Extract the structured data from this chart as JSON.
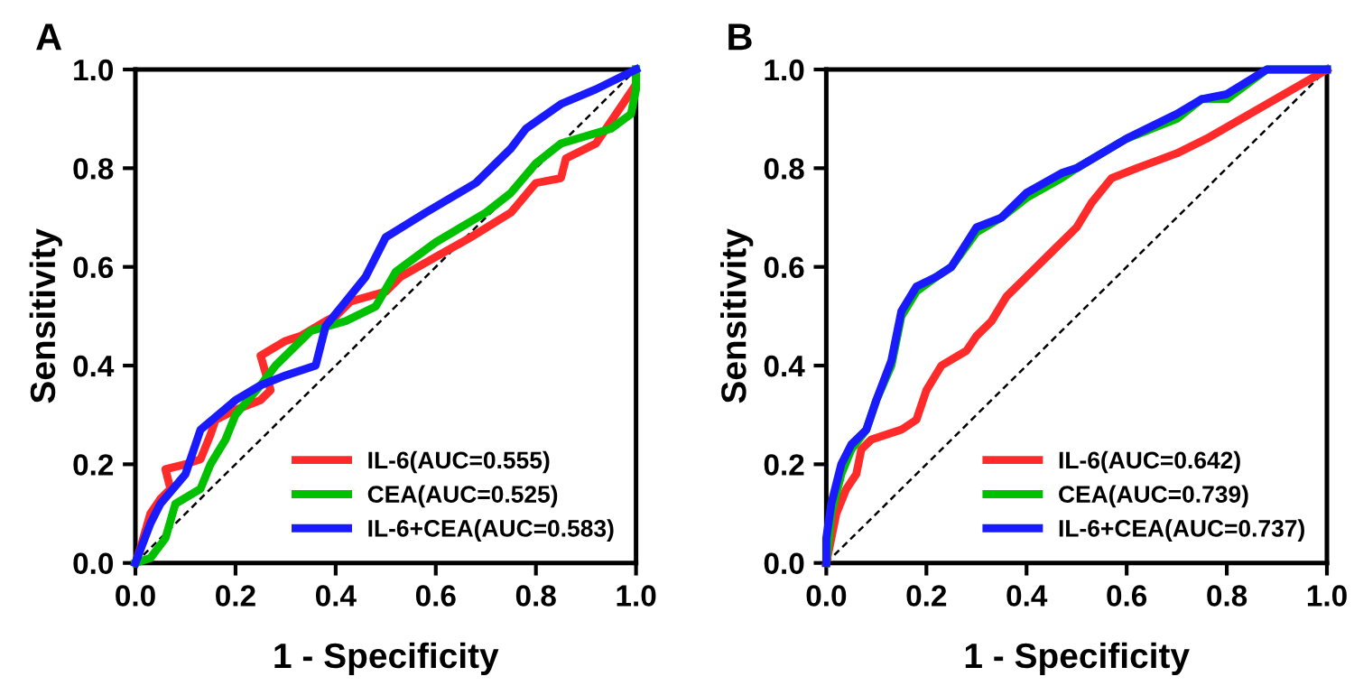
{
  "chart_data": [
    {
      "type": "line",
      "title": "A",
      "xlabel": "1 - Specificity",
      "ylabel": "Sensitivity",
      "xlim": [
        0,
        1
      ],
      "ylim": [
        0,
        1
      ],
      "xticks": [
        {
          "value": 0,
          "label": "0.0"
        },
        {
          "value": 0.2,
          "label": "0.2"
        },
        {
          "value": 0.4,
          "label": "0.4"
        },
        {
          "value": 0.6,
          "label": "0.6"
        },
        {
          "value": 0.8,
          "label": "0.8"
        },
        {
          "value": 1,
          "label": "1.0"
        }
      ],
      "yticks": [
        {
          "value": 0,
          "label": "0.0"
        },
        {
          "value": 0.2,
          "label": "0.2"
        },
        {
          "value": 0.4,
          "label": "0.4"
        },
        {
          "value": 0.6,
          "label": "0.6"
        },
        {
          "value": 0.8,
          "label": "0.8"
        },
        {
          "value": 1,
          "label": "1.0"
        }
      ],
      "grid": false,
      "legend": "bottom right",
      "marker": "none",
      "line_style": "solid",
      "series": [
        {
          "name": "IL-6(AUC=0.555)",
          "color": "#ff2a2a",
          "x": [
            0,
            0.01,
            0.03,
            0.05,
            0.07,
            0.06,
            0.1,
            0.13,
            0.15,
            0.16,
            0.2,
            0.25,
            0.27,
            0.25,
            0.3,
            0.33,
            0.38,
            0.4,
            0.43,
            0.5,
            0.53,
            0.6,
            0.67,
            0.75,
            0.8,
            0.85,
            0.86,
            0.92,
            1,
            1
          ],
          "values": [
            0,
            0.03,
            0.1,
            0.13,
            0.15,
            0.19,
            0.2,
            0.21,
            0.26,
            0.29,
            0.31,
            0.33,
            0.35,
            0.42,
            0.45,
            0.46,
            0.49,
            0.5,
            0.53,
            0.55,
            0.58,
            0.62,
            0.66,
            0.71,
            0.77,
            0.78,
            0.82,
            0.85,
            0.97,
            1
          ]
        },
        {
          "name": "CEA(AUC=0.525)",
          "color": "#00c000",
          "x": [
            0,
            0.03,
            0.06,
            0.08,
            0.13,
            0.15,
            0.18,
            0.2,
            0.25,
            0.28,
            0.35,
            0.42,
            0.48,
            0.52,
            0.6,
            0.7,
            0.75,
            0.8,
            0.85,
            0.95,
            0.99,
            1,
            1
          ],
          "values": [
            0,
            0.01,
            0.05,
            0.12,
            0.15,
            0.2,
            0.25,
            0.3,
            0.36,
            0.4,
            0.47,
            0.49,
            0.52,
            0.59,
            0.65,
            0.71,
            0.75,
            0.81,
            0.85,
            0.88,
            0.91,
            0.96,
            1
          ]
        },
        {
          "name": "IL-6+CEA(AUC=0.583)",
          "color": "#1a1aff",
          "x": [
            0,
            0.03,
            0.05,
            0.1,
            0.13,
            0.2,
            0.25,
            0.3,
            0.36,
            0.38,
            0.42,
            0.46,
            0.5,
            0.58,
            0.68,
            0.75,
            0.78,
            0.85,
            0.92,
            1
          ],
          "values": [
            0,
            0.08,
            0.12,
            0.18,
            0.27,
            0.33,
            0.36,
            0.38,
            0.4,
            0.48,
            0.53,
            0.58,
            0.66,
            0.71,
            0.77,
            0.84,
            0.88,
            0.93,
            0.96,
            1
          ]
        },
        {
          "color": "#000000",
          "line_style": "dashed",
          "x": [
            0,
            1
          ],
          "values": [
            0,
            1
          ]
        }
      ]
    },
    {
      "type": "line",
      "title": "B",
      "xlabel": "1 - Specificity",
      "ylabel": "Sensitivity",
      "xlim": [
        0,
        1
      ],
      "ylim": [
        0,
        1
      ],
      "xticks": [
        {
          "value": 0,
          "label": "0.0"
        },
        {
          "value": 0.2,
          "label": "0.2"
        },
        {
          "value": 0.4,
          "label": "0.4"
        },
        {
          "value": 0.6,
          "label": "0.6"
        },
        {
          "value": 0.8,
          "label": "0.8"
        },
        {
          "value": 1,
          "label": "1.0"
        }
      ],
      "yticks": [
        {
          "value": 0,
          "label": "0.0"
        },
        {
          "value": 0.2,
          "label": "0.2"
        },
        {
          "value": 0.4,
          "label": "0.4"
        },
        {
          "value": 0.6,
          "label": "0.6"
        },
        {
          "value": 0.8,
          "label": "0.8"
        },
        {
          "value": 1,
          "label": "1.0"
        }
      ],
      "grid": false,
      "legend": "bottom right",
      "marker": "none",
      "line_style": "solid",
      "series": [
        {
          "name": "IL-6(AUC=0.642)",
          "color": "#ff2a2a",
          "x": [
            0,
            0.02,
            0.04,
            0.06,
            0.07,
            0.09,
            0.15,
            0.18,
            0.2,
            0.23,
            0.28,
            0.3,
            0.33,
            0.36,
            0.4,
            0.45,
            0.5,
            0.53,
            0.57,
            0.62,
            0.7,
            0.76,
            1
          ],
          "values": [
            0,
            0.1,
            0.15,
            0.18,
            0.23,
            0.25,
            0.27,
            0.29,
            0.35,
            0.4,
            0.43,
            0.46,
            0.49,
            0.54,
            0.58,
            0.63,
            0.68,
            0.73,
            0.78,
            0.8,
            0.83,
            0.86,
            1
          ]
        },
        {
          "name": "CEA(AUC=0.739)",
          "color": "#00c000",
          "x": [
            0,
            0.01,
            0.03,
            0.05,
            0.08,
            0.1,
            0.13,
            0.15,
            0.18,
            0.22,
            0.25,
            0.3,
            0.35,
            0.4,
            0.47,
            0.5,
            0.6,
            0.7,
            0.75,
            0.8,
            0.88,
            1
          ],
          "values": [
            0,
            0.1,
            0.18,
            0.23,
            0.27,
            0.33,
            0.4,
            0.5,
            0.55,
            0.58,
            0.6,
            0.67,
            0.7,
            0.74,
            0.78,
            0.8,
            0.86,
            0.9,
            0.94,
            0.94,
            1,
            1
          ]
        },
        {
          "name": "IL-6+CEA(AUC=0.737)",
          "color": "#1a1aff",
          "x": [
            0,
            0,
            0.01,
            0.03,
            0.05,
            0.08,
            0.1,
            0.13,
            0.15,
            0.18,
            0.22,
            0.25,
            0.3,
            0.35,
            0.4,
            0.47,
            0.5,
            0.6,
            0.7,
            0.75,
            0.8,
            0.88,
            1
          ],
          "values": [
            0,
            0.05,
            0.12,
            0.2,
            0.24,
            0.27,
            0.33,
            0.41,
            0.51,
            0.56,
            0.58,
            0.6,
            0.68,
            0.7,
            0.75,
            0.79,
            0.8,
            0.86,
            0.91,
            0.94,
            0.95,
            1,
            1
          ]
        },
        {
          "color": "#000000",
          "line_style": "dashed",
          "x": [
            0,
            1
          ],
          "values": [
            0,
            1
          ]
        }
      ]
    }
  ]
}
